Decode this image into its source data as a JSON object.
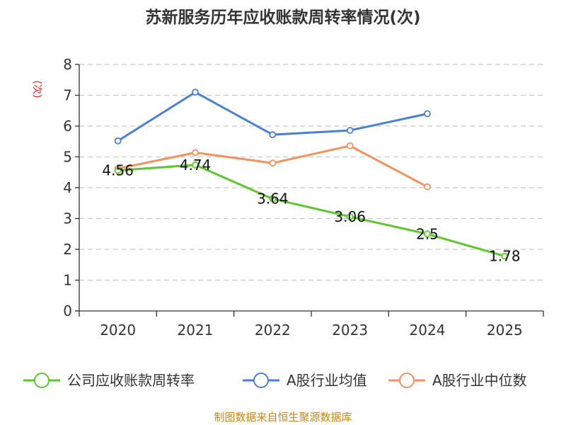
{
  "chart_data": {
    "type": "line",
    "title": "苏新服务历年应收账款周转率情况(次)",
    "ylabel": "(次)",
    "xlabel": "",
    "categories": [
      "2020",
      "2021",
      "2022",
      "2023",
      "2024",
      "2025"
    ],
    "ylim": [
      0,
      8
    ],
    "yticks": [
      0,
      1,
      2,
      3,
      4,
      5,
      6,
      7,
      8
    ],
    "grid": true,
    "legend_position": "bottom",
    "series": [
      {
        "name": "公司应收账款周转率",
        "color": "#5ec72f",
        "values": [
          4.56,
          4.74,
          3.64,
          3.06,
          2.5,
          1.78
        ],
        "labels": [
          "4.56",
          "4.74",
          "3.64",
          "3.06",
          "2.5",
          "1.78"
        ]
      },
      {
        "name": "A股行业均值",
        "color": "#4a7fd8",
        "values": [
          5.52,
          7.1,
          5.72,
          5.86,
          6.4,
          null
        ]
      },
      {
        "name": "A股行业中位数",
        "color": "#f5915c",
        "values": [
          4.62,
          5.14,
          4.8,
          5.36,
          4.03,
          null
        ]
      }
    ],
    "source": "制图数据来自恒生聚源数据库"
  }
}
